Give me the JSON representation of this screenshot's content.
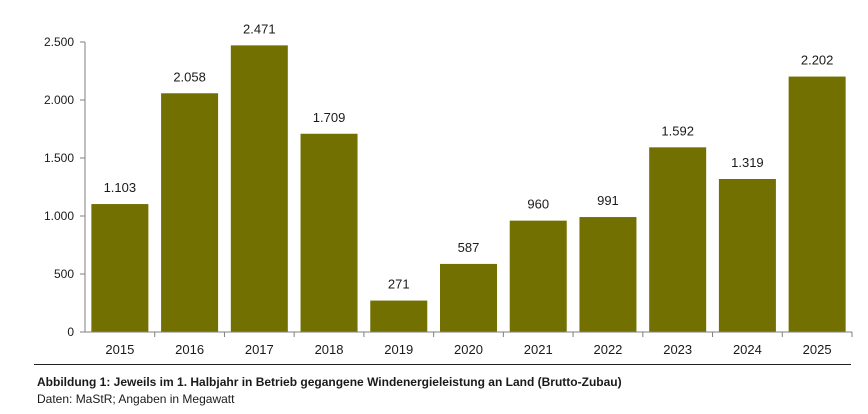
{
  "chart_data": {
    "type": "bar",
    "title": "",
    "xlabel": "",
    "ylabel": "",
    "categories": [
      "2015",
      "2016",
      "2017",
      "2018",
      "2019",
      "2020",
      "2021",
      "2022",
      "2023",
      "2024",
      "2025"
    ],
    "values": [
      1103,
      2058,
      2471,
      1709,
      271,
      587,
      960,
      991,
      1592,
      1319,
      2202
    ],
    "value_labels": [
      "1.103",
      "2.058",
      "2.471",
      "1.709",
      "271",
      "587",
      "960",
      "991",
      "1.592",
      "1.319",
      "2.202"
    ],
    "ylim": [
      0,
      2500
    ],
    "yticks": [
      0,
      500,
      1000,
      1500,
      2000,
      2500
    ],
    "ytick_labels": [
      "0",
      "500",
      "1.000",
      "1.500",
      "2.000",
      "2.500"
    ],
    "bar_color": "#727001",
    "grid": false,
    "legend": "none"
  },
  "caption": {
    "title": "Abbildung 1: Jeweils im 1. Halbjahr in Betrieb gegangene Windenergieleistung an Land (Brutto-Zubau)",
    "source": "Daten: MaStR; Angaben in Megawatt"
  }
}
